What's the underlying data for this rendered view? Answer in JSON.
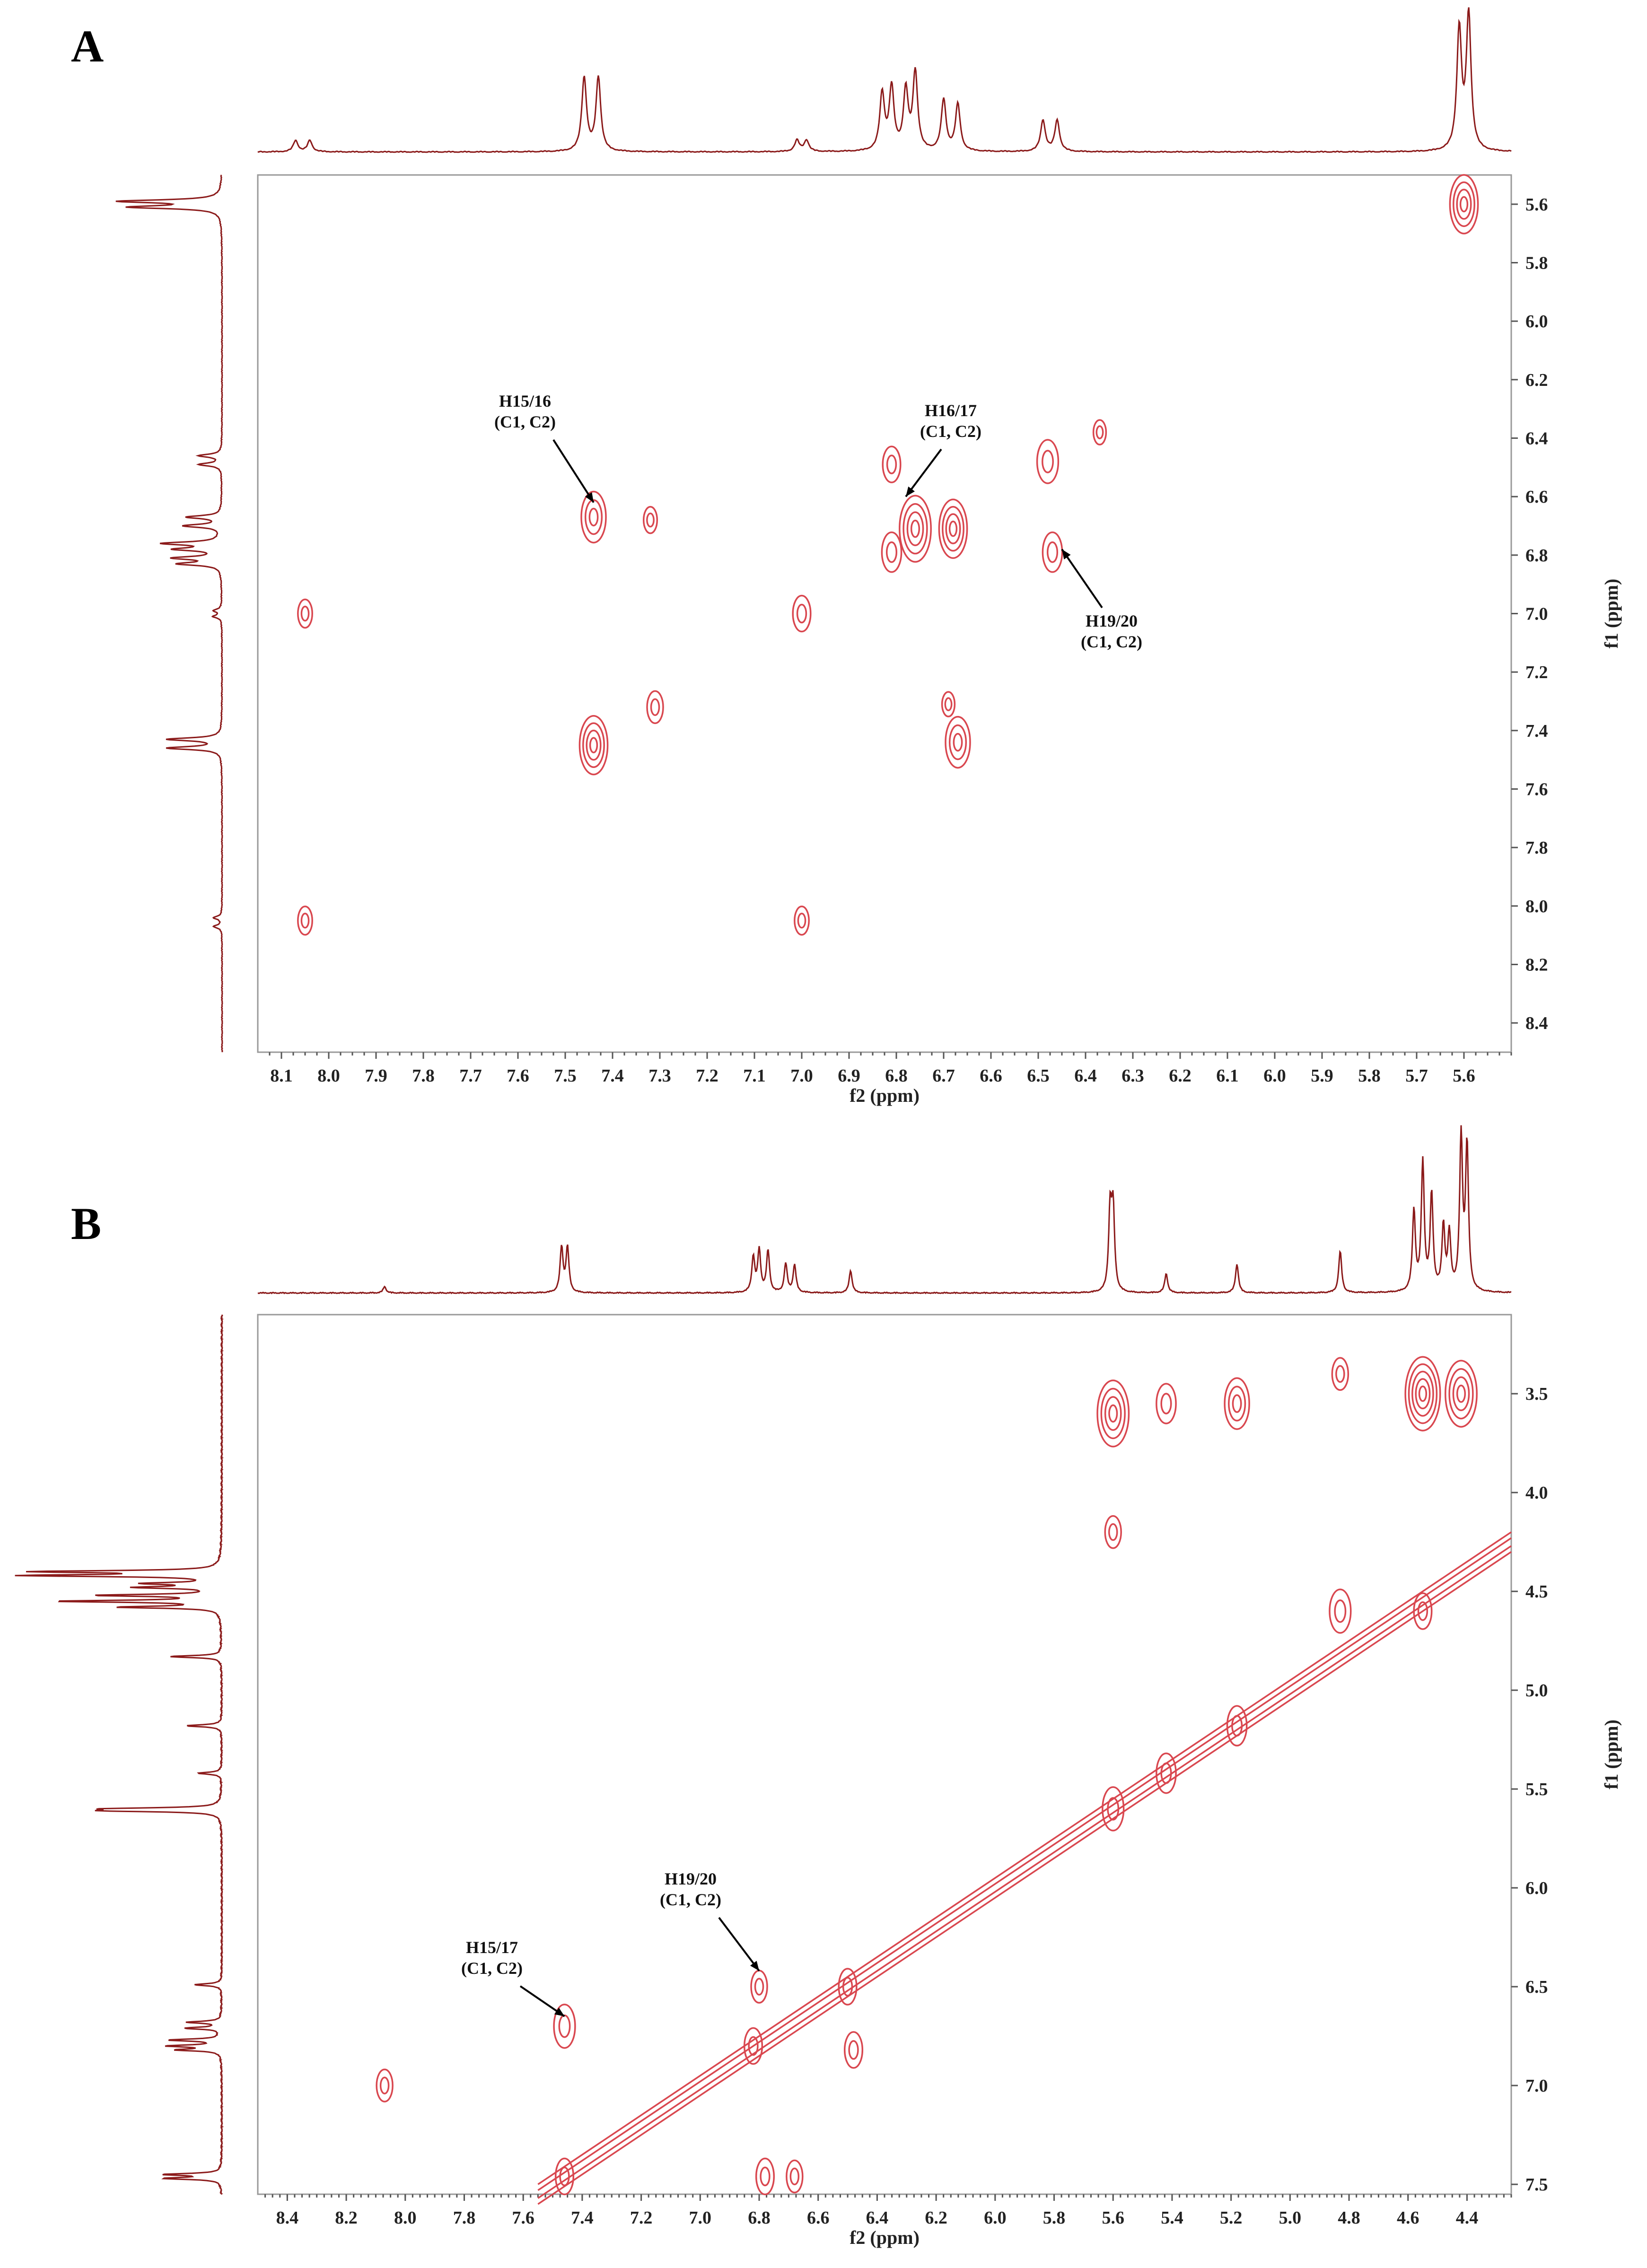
{
  "colors": {
    "spectrum": "#8b1a1a",
    "contour": "#d9474f",
    "frame": "#999999",
    "text": "#222222"
  },
  "chart_data": [
    {
      "type": "heatmap",
      "panel": "A",
      "title": "",
      "xlabel": "f2 (ppm)",
      "ylabel": "f1 (ppm)",
      "xlim": [
        8.15,
        5.5
      ],
      "ylim": [
        5.5,
        8.5
      ],
      "xticks": [
        "8.1",
        "8.0",
        "7.9",
        "7.8",
        "7.7",
        "7.6",
        "7.5",
        "7.4",
        "7.3",
        "7.2",
        "7.1",
        "7.0",
        "6.9",
        "6.8",
        "6.7",
        "6.6",
        "6.5",
        "6.4",
        "6.3",
        "6.2",
        "6.1",
        "6.0",
        "5.9",
        "5.8",
        "5.7",
        "5.6"
      ],
      "yticks": [
        "5.6",
        "5.8",
        "6.0",
        "6.2",
        "6.4",
        "6.6",
        "6.8",
        "7.0",
        "7.2",
        "7.4",
        "7.6",
        "7.8",
        "8.0",
        "8.2",
        "8.4"
      ],
      "peaks_1d": [
        {
          "ppm": 8.07,
          "h": 0.08
        },
        {
          "ppm": 8.04,
          "h": 0.08
        },
        {
          "ppm": 7.46,
          "h": 0.52
        },
        {
          "ppm": 7.43,
          "h": 0.52
        },
        {
          "ppm": 7.01,
          "h": 0.08
        },
        {
          "ppm": 6.99,
          "h": 0.08
        },
        {
          "ppm": 6.83,
          "h": 0.4
        },
        {
          "ppm": 6.81,
          "h": 0.44
        },
        {
          "ppm": 6.78,
          "h": 0.42
        },
        {
          "ppm": 6.76,
          "h": 0.55
        },
        {
          "ppm": 6.7,
          "h": 0.36
        },
        {
          "ppm": 6.67,
          "h": 0.33
        },
        {
          "ppm": 6.49,
          "h": 0.22
        },
        {
          "ppm": 6.46,
          "h": 0.22
        },
        {
          "ppm": 5.61,
          "h": 0.85
        },
        {
          "ppm": 5.59,
          "h": 0.95
        }
      ],
      "crosspeaks": [
        {
          "x": 5.6,
          "y": 5.6,
          "r": 1.2
        },
        {
          "x": 7.44,
          "y": 6.67,
          "r": 1.0
        },
        {
          "x": 7.32,
          "y": 6.68,
          "r": 0.35
        },
        {
          "x": 8.05,
          "y": 7.0,
          "r": 0.4
        },
        {
          "x": 7.0,
          "y": 7.0,
          "r": 0.6
        },
        {
          "x": 6.81,
          "y": 6.49,
          "r": 0.6
        },
        {
          "x": 6.76,
          "y": 6.71,
          "r": 1.4
        },
        {
          "x": 6.68,
          "y": 6.71,
          "r": 1.2
        },
        {
          "x": 6.81,
          "y": 6.79,
          "r": 0.7
        },
        {
          "x": 6.48,
          "y": 6.48,
          "r": 0.8
        },
        {
          "x": 6.47,
          "y": 6.79,
          "r": 0.7
        },
        {
          "x": 6.37,
          "y": 6.38,
          "r": 0.3
        },
        {
          "x": 7.31,
          "y": 7.32,
          "r": 0.5
        },
        {
          "x": 7.44,
          "y": 7.45,
          "r": 1.2
        },
        {
          "x": 6.67,
          "y": 7.44,
          "r": 1.0
        },
        {
          "x": 6.69,
          "y": 7.31,
          "r": 0.3
        },
        {
          "x": 8.05,
          "y": 8.05,
          "r": 0.4
        },
        {
          "x": 7.0,
          "y": 8.05,
          "r": 0.4
        }
      ],
      "annotations": [
        {
          "label1": "H15/16",
          "label2": "(C1, C2)",
          "x": 7.44,
          "y": 6.62
        },
        {
          "label1": "H16/17",
          "label2": "(C1, C2)",
          "x": 6.78,
          "y": 6.6
        },
        {
          "label1": "H19/20",
          "label2": "(C1, C2)",
          "x": 6.45,
          "y": 6.78
        }
      ]
    },
    {
      "type": "heatmap",
      "panel": "B",
      "title": "",
      "xlabel": "f2 (ppm)",
      "ylabel": "f1 (ppm)",
      "xlim": [
        8.5,
        4.25
      ],
      "ylim": [
        3.1,
        7.55
      ],
      "xticks": [
        "8.4",
        "8.2",
        "8.0",
        "7.8",
        "7.6",
        "7.4",
        "7.2",
        "7.0",
        "6.8",
        "6.6",
        "6.4",
        "6.2",
        "6.0",
        "5.8",
        "5.6",
        "5.4",
        "5.2",
        "5.0",
        "4.8",
        "4.6",
        "4.4"
      ],
      "yticks": [
        "3.5",
        "4.0",
        "4.5",
        "5.0",
        "5.5",
        "6.0",
        "6.5",
        "7.0",
        "7.5"
      ],
      "peaks_1d": [
        {
          "ppm": 8.07,
          "h": 0.04
        },
        {
          "ppm": 7.47,
          "h": 0.28
        },
        {
          "ppm": 7.45,
          "h": 0.28
        },
        {
          "ppm": 6.82,
          "h": 0.22
        },
        {
          "ppm": 6.8,
          "h": 0.26
        },
        {
          "ppm": 6.77,
          "h": 0.26
        },
        {
          "ppm": 6.71,
          "h": 0.18
        },
        {
          "ppm": 6.68,
          "h": 0.17
        },
        {
          "ppm": 6.49,
          "h": 0.14
        },
        {
          "ppm": 5.61,
          "h": 0.5
        },
        {
          "ppm": 5.6,
          "h": 0.5
        },
        {
          "ppm": 5.42,
          "h": 0.12
        },
        {
          "ppm": 5.18,
          "h": 0.18
        },
        {
          "ppm": 4.83,
          "h": 0.26
        },
        {
          "ppm": 4.58,
          "h": 0.5
        },
        {
          "ppm": 4.55,
          "h": 0.8
        },
        {
          "ppm": 4.52,
          "h": 0.6
        },
        {
          "ppm": 4.48,
          "h": 0.4
        },
        {
          "ppm": 4.46,
          "h": 0.35
        },
        {
          "ppm": 4.42,
          "h": 0.95
        },
        {
          "ppm": 4.4,
          "h": 0.9
        }
      ],
      "crosspeaks": [
        {
          "x": 5.6,
          "y": 3.6,
          "r": 1.4
        },
        {
          "x": 5.42,
          "y": 3.55,
          "r": 0.7
        },
        {
          "x": 5.18,
          "y": 3.55,
          "r": 1.0
        },
        {
          "x": 4.83,
          "y": 3.4,
          "r": 0.5
        },
        {
          "x": 4.55,
          "y": 3.5,
          "r": 1.6
        },
        {
          "x": 4.42,
          "y": 3.5,
          "r": 1.4
        },
        {
          "x": 5.6,
          "y": 4.2,
          "r": 0.5
        },
        {
          "x": 4.83,
          "y": 4.6,
          "r": 0.8
        },
        {
          "x": 4.55,
          "y": 4.6,
          "r": 0.6
        },
        {
          "x": 5.6,
          "y": 5.6,
          "r": 0.8
        },
        {
          "x": 5.42,
          "y": 5.42,
          "r": 0.7
        },
        {
          "x": 5.18,
          "y": 5.18,
          "r": 0.7
        },
        {
          "x": 6.8,
          "y": 6.5,
          "r": 0.5
        },
        {
          "x": 6.5,
          "y": 6.5,
          "r": 0.6
        },
        {
          "x": 6.82,
          "y": 6.8,
          "r": 0.6
        },
        {
          "x": 6.48,
          "y": 6.82,
          "r": 0.6
        },
        {
          "x": 7.46,
          "y": 6.7,
          "r": 0.8
        },
        {
          "x": 8.07,
          "y": 7.0,
          "r": 0.5
        },
        {
          "x": 7.46,
          "y": 7.46,
          "r": 0.6
        },
        {
          "x": 6.78,
          "y": 7.46,
          "r": 0.6
        },
        {
          "x": 6.68,
          "y": 7.46,
          "r": 0.5
        }
      ],
      "diagonal": {
        "from": 7.55,
        "to": 4.25
      },
      "annotations": [
        {
          "label1": "H15/17",
          "label2": "(C1, C2)",
          "x": 7.46,
          "y": 6.65
        },
        {
          "label1": "H19/20",
          "label2": "(C1, C2)",
          "x": 6.8,
          "y": 6.42
        }
      ]
    }
  ]
}
